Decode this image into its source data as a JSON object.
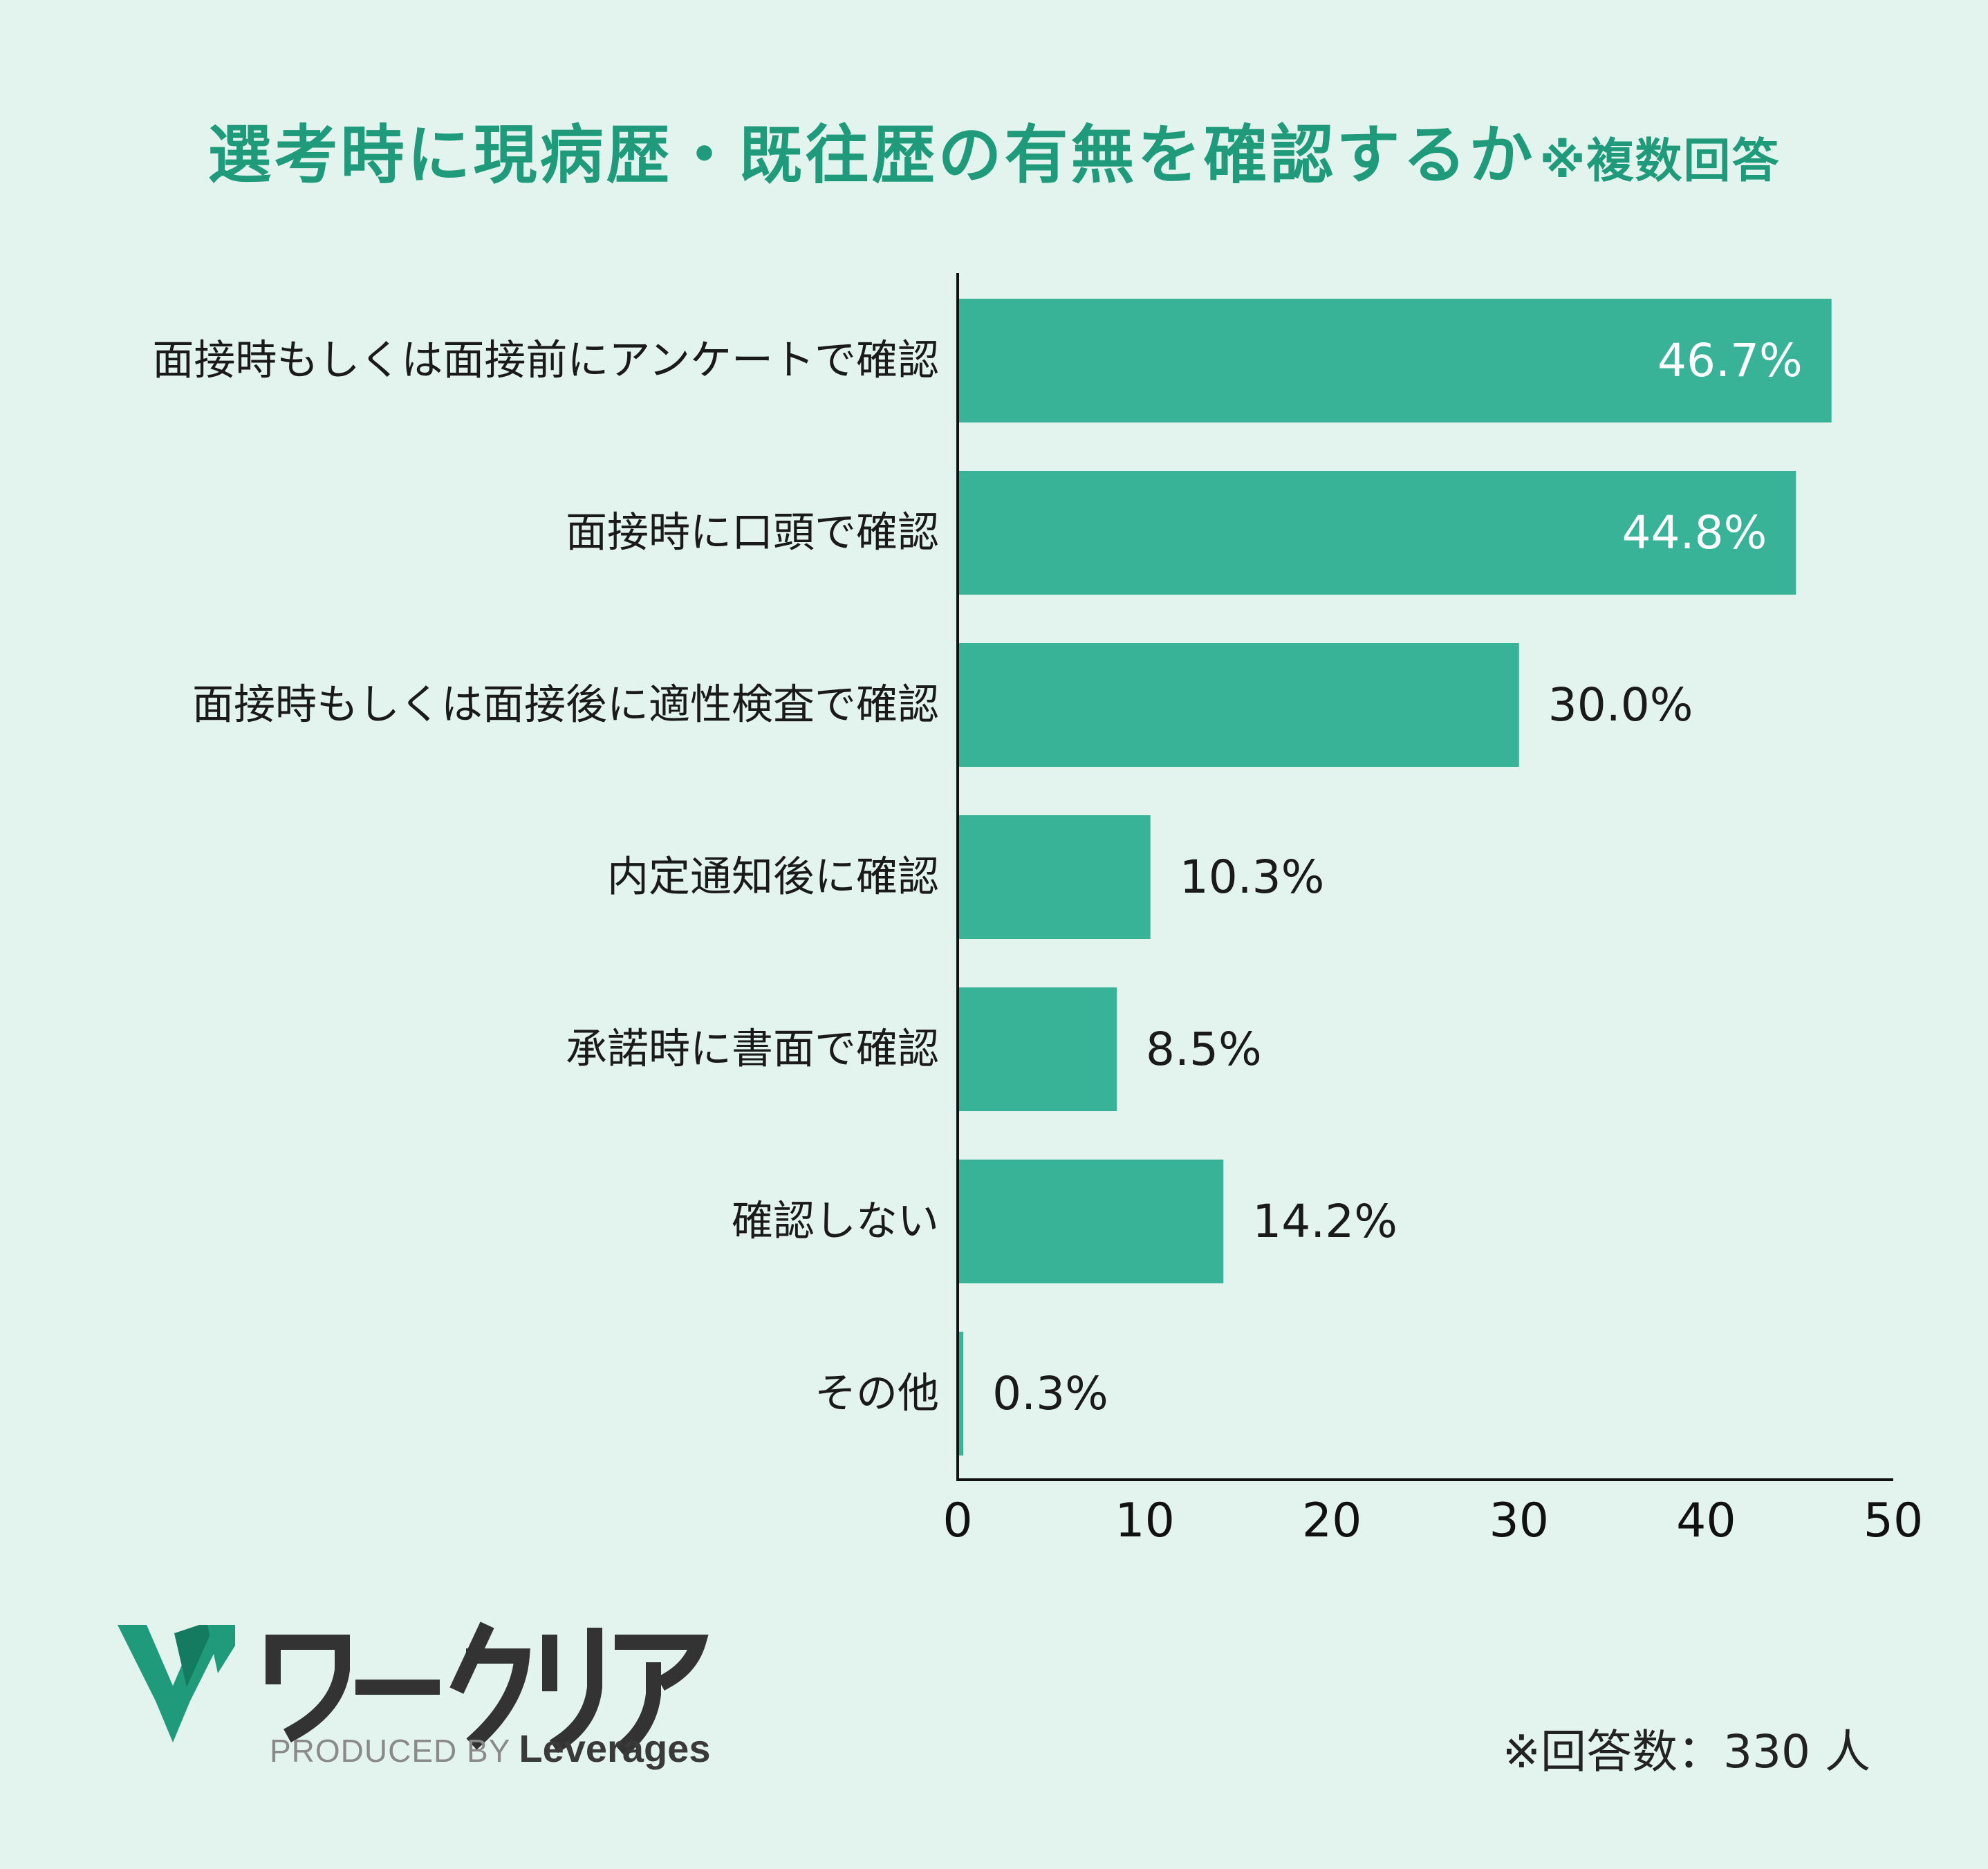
{
  "title": "選考時に現病歴・既往歴の有無を確認するか",
  "title_note": "※複数回答",
  "chart_data": {
    "type": "bar",
    "orientation": "horizontal",
    "categories": [
      "面接時もしくは面接前にアンケートで確認",
      "面接時に口頭で確認",
      "面接時もしくは面接後に適性検査で確認",
      "内定通知後に確認",
      "承諾時に書面で確認",
      "確認しない",
      "その他"
    ],
    "values": [
      46.7,
      44.8,
      30.0,
      10.3,
      8.5,
      14.2,
      0.3
    ],
    "value_labels": [
      "46.7%",
      "44.8%",
      "30.0%",
      "10.3%",
      "8.5%",
      "14.2%",
      "0.3%"
    ],
    "xlim": [
      0,
      50
    ],
    "xticks": [
      0,
      10,
      20,
      30,
      40,
      50
    ],
    "grid": false,
    "legend": "none",
    "bar_color": "#38b398"
  },
  "logo": {
    "name": "ワークリア",
    "produced_by": "PRODUCED BY",
    "company": "Leverages"
  },
  "respondents": "※回答数：330 人",
  "colors": {
    "background": "#e3f4ef",
    "accent": "#1f9a7a",
    "bar": "#38b398",
    "axis": "#111111"
  }
}
